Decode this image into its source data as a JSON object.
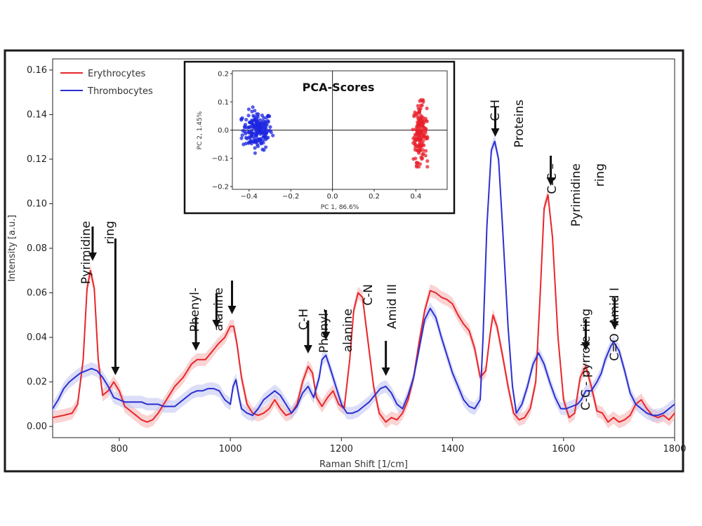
{
  "chart_data": {
    "type": "line",
    "xlabel": "Raman Shift [1/cm]",
    "ylabel": "Intensity [a.u.]",
    "xlim": [
      680,
      1800
    ],
    "ylim": [
      -0.005,
      0.165
    ],
    "x_ticks": [
      "800",
      "1000",
      "1200",
      "1400",
      "1600",
      "1800"
    ],
    "y_ticks": [
      "0.00",
      "0.02",
      "0.04",
      "0.06",
      "0.08",
      "0.10",
      "0.12",
      "0.14",
      "0.16"
    ],
    "legend_position": "top-left",
    "grid": false,
    "series": [
      {
        "name": "Erythrocytes",
        "color": "#e8262b",
        "band_color": "#f6b5b5",
        "points": [
          [
            680,
            0.004
          ],
          [
            700,
            0.005
          ],
          [
            715,
            0.006
          ],
          [
            725,
            0.01
          ],
          [
            735,
            0.03
          ],
          [
            742,
            0.062
          ],
          [
            748,
            0.07
          ],
          [
            755,
            0.062
          ],
          [
            762,
            0.03
          ],
          [
            770,
            0.014
          ],
          [
            780,
            0.016
          ],
          [
            790,
            0.02
          ],
          [
            800,
            0.016
          ],
          [
            810,
            0.009
          ],
          [
            820,
            0.007
          ],
          [
            830,
            0.005
          ],
          [
            840,
            0.003
          ],
          [
            850,
            0.002
          ],
          [
            860,
            0.003
          ],
          [
            870,
            0.006
          ],
          [
            880,
            0.01
          ],
          [
            890,
            0.014
          ],
          [
            900,
            0.018
          ],
          [
            915,
            0.022
          ],
          [
            930,
            0.028
          ],
          [
            940,
            0.03
          ],
          [
            955,
            0.03
          ],
          [
            965,
            0.033
          ],
          [
            978,
            0.037
          ],
          [
            990,
            0.04
          ],
          [
            1000,
            0.045
          ],
          [
            1006,
            0.045
          ],
          [
            1012,
            0.037
          ],
          [
            1020,
            0.022
          ],
          [
            1030,
            0.01
          ],
          [
            1040,
            0.006
          ],
          [
            1050,
            0.005
          ],
          [
            1060,
            0.006
          ],
          [
            1070,
            0.008
          ],
          [
            1080,
            0.012
          ],
          [
            1090,
            0.008
          ],
          [
            1100,
            0.005
          ],
          [
            1110,
            0.006
          ],
          [
            1120,
            0.01
          ],
          [
            1130,
            0.02
          ],
          [
            1140,
            0.027
          ],
          [
            1148,
            0.024
          ],
          [
            1155,
            0.013
          ],
          [
            1165,
            0.009
          ],
          [
            1175,
            0.013
          ],
          [
            1185,
            0.016
          ],
          [
            1195,
            0.01
          ],
          [
            1205,
            0.008
          ],
          [
            1215,
            0.03
          ],
          [
            1222,
            0.052
          ],
          [
            1230,
            0.06
          ],
          [
            1238,
            0.058
          ],
          [
            1248,
            0.038
          ],
          [
            1258,
            0.018
          ],
          [
            1268,
            0.006
          ],
          [
            1280,
            0.002
          ],
          [
            1290,
            0.004
          ],
          [
            1300,
            0.003
          ],
          [
            1310,
            0.006
          ],
          [
            1320,
            0.012
          ],
          [
            1330,
            0.022
          ],
          [
            1340,
            0.038
          ],
          [
            1350,
            0.052
          ],
          [
            1360,
            0.061
          ],
          [
            1370,
            0.06
          ],
          [
            1380,
            0.058
          ],
          [
            1390,
            0.057
          ],
          [
            1400,
            0.055
          ],
          [
            1410,
            0.05
          ],
          [
            1420,
            0.046
          ],
          [
            1430,
            0.043
          ],
          [
            1440,
            0.035
          ],
          [
            1450,
            0.022
          ],
          [
            1460,
            0.025
          ],
          [
            1468,
            0.042
          ],
          [
            1473,
            0.05
          ],
          [
            1480,
            0.045
          ],
          [
            1490,
            0.032
          ],
          [
            1500,
            0.018
          ],
          [
            1510,
            0.006
          ],
          [
            1520,
            0.003
          ],
          [
            1530,
            0.004
          ],
          [
            1540,
            0.008
          ],
          [
            1550,
            0.02
          ],
          [
            1558,
            0.06
          ],
          [
            1565,
            0.098
          ],
          [
            1572,
            0.104
          ],
          [
            1580,
            0.085
          ],
          [
            1590,
            0.04
          ],
          [
            1600,
            0.012
          ],
          [
            1610,
            0.004
          ],
          [
            1620,
            0.006
          ],
          [
            1630,
            0.022
          ],
          [
            1640,
            0.027
          ],
          [
            1650,
            0.018
          ],
          [
            1660,
            0.007
          ],
          [
            1670,
            0.006
          ],
          [
            1680,
            0.002
          ],
          [
            1690,
            0.004
          ],
          [
            1700,
            0.002
          ],
          [
            1710,
            0.003
          ],
          [
            1720,
            0.005
          ],
          [
            1730,
            0.01
          ],
          [
            1740,
            0.012
          ],
          [
            1750,
            0.008
          ],
          [
            1760,
            0.005
          ],
          [
            1770,
            0.004
          ],
          [
            1780,
            0.005
          ],
          [
            1790,
            0.003
          ],
          [
            1800,
            0.006
          ]
        ]
      },
      {
        "name": "Thrombocytes",
        "color": "#2b2fd0",
        "band_color": "#c4c8f3",
        "points": [
          [
            680,
            0.008
          ],
          [
            690,
            0.012
          ],
          [
            700,
            0.017
          ],
          [
            710,
            0.02
          ],
          [
            720,
            0.022
          ],
          [
            730,
            0.024
          ],
          [
            740,
            0.025
          ],
          [
            750,
            0.026
          ],
          [
            760,
            0.025
          ],
          [
            770,
            0.022
          ],
          [
            780,
            0.018
          ],
          [
            790,
            0.013
          ],
          [
            800,
            0.012
          ],
          [
            810,
            0.011
          ],
          [
            820,
            0.011
          ],
          [
            830,
            0.011
          ],
          [
            840,
            0.011
          ],
          [
            850,
            0.01
          ],
          [
            860,
            0.01
          ],
          [
            870,
            0.01
          ],
          [
            880,
            0.009
          ],
          [
            890,
            0.009
          ],
          [
            900,
            0.009
          ],
          [
            910,
            0.011
          ],
          [
            920,
            0.013
          ],
          [
            930,
            0.015
          ],
          [
            940,
            0.016
          ],
          [
            950,
            0.016
          ],
          [
            960,
            0.017
          ],
          [
            970,
            0.017
          ],
          [
            980,
            0.016
          ],
          [
            990,
            0.012
          ],
          [
            1000,
            0.01
          ],
          [
            1005,
            0.018
          ],
          [
            1010,
            0.021
          ],
          [
            1015,
            0.014
          ],
          [
            1020,
            0.008
          ],
          [
            1030,
            0.006
          ],
          [
            1040,
            0.005
          ],
          [
            1050,
            0.008
          ],
          [
            1060,
            0.012
          ],
          [
            1070,
            0.014
          ],
          [
            1080,
            0.016
          ],
          [
            1090,
            0.014
          ],
          [
            1100,
            0.01
          ],
          [
            1110,
            0.006
          ],
          [
            1120,
            0.009
          ],
          [
            1130,
            0.015
          ],
          [
            1140,
            0.018
          ],
          [
            1150,
            0.013
          ],
          [
            1160,
            0.022
          ],
          [
            1165,
            0.03
          ],
          [
            1172,
            0.032
          ],
          [
            1180,
            0.026
          ],
          [
            1190,
            0.018
          ],
          [
            1200,
            0.01
          ],
          [
            1210,
            0.006
          ],
          [
            1220,
            0.006
          ],
          [
            1230,
            0.007
          ],
          [
            1240,
            0.009
          ],
          [
            1250,
            0.011
          ],
          [
            1260,
            0.014
          ],
          [
            1270,
            0.017
          ],
          [
            1280,
            0.018
          ],
          [
            1290,
            0.015
          ],
          [
            1300,
            0.01
          ],
          [
            1310,
            0.008
          ],
          [
            1320,
            0.014
          ],
          [
            1330,
            0.022
          ],
          [
            1340,
            0.035
          ],
          [
            1350,
            0.048
          ],
          [
            1360,
            0.053
          ],
          [
            1370,
            0.049
          ],
          [
            1380,
            0.04
          ],
          [
            1390,
            0.032
          ],
          [
            1400,
            0.024
          ],
          [
            1410,
            0.018
          ],
          [
            1420,
            0.012
          ],
          [
            1430,
            0.009
          ],
          [
            1440,
            0.008
          ],
          [
            1450,
            0.012
          ],
          [
            1455,
            0.04
          ],
          [
            1462,
            0.09
          ],
          [
            1470,
            0.124
          ],
          [
            1476,
            0.128
          ],
          [
            1483,
            0.12
          ],
          [
            1490,
            0.09
          ],
          [
            1500,
            0.045
          ],
          [
            1508,
            0.018
          ],
          [
            1515,
            0.006
          ],
          [
            1525,
            0.01
          ],
          [
            1535,
            0.018
          ],
          [
            1545,
            0.028
          ],
          [
            1555,
            0.033
          ],
          [
            1565,
            0.028
          ],
          [
            1575,
            0.02
          ],
          [
            1585,
            0.013
          ],
          [
            1595,
            0.008
          ],
          [
            1605,
            0.008
          ],
          [
            1615,
            0.009
          ],
          [
            1625,
            0.01
          ],
          [
            1632,
            0.012
          ],
          [
            1640,
            0.016
          ],
          [
            1650,
            0.016
          ],
          [
            1660,
            0.02
          ],
          [
            1668,
            0.024
          ],
          [
            1675,
            0.03
          ],
          [
            1685,
            0.036
          ],
          [
            1690,
            0.038
          ],
          [
            1700,
            0.034
          ],
          [
            1710,
            0.025
          ],
          [
            1720,
            0.015
          ],
          [
            1730,
            0.01
          ],
          [
            1740,
            0.008
          ],
          [
            1750,
            0.006
          ],
          [
            1760,
            0.005
          ],
          [
            1770,
            0.005
          ],
          [
            1780,
            0.006
          ],
          [
            1790,
            0.008
          ],
          [
            1800,
            0.01
          ]
        ]
      }
    ],
    "annotations": [
      {
        "id": "pyrimidine-ring-1",
        "lines": [
          "Pyrimidine",
          "ring"
        ],
        "arrows": [
          752,
          793
        ]
      },
      {
        "id": "phenylalanine-1",
        "lines": [
          "Phenyl-",
          "alanine"
        ],
        "arrows": [
          938,
          975,
          1003
        ]
      },
      {
        "id": "ch-1",
        "lines": [
          "C-H"
        ],
        "arrows": [
          1140
        ]
      },
      {
        "id": "phenylalanine-2",
        "lines": [
          "Phenyl-",
          "alanine"
        ],
        "arrows": [
          1172
        ]
      },
      {
        "id": "cn-amid-iii",
        "lines": [
          "C-N",
          "Amid III"
        ],
        "arrows": [
          1280
        ]
      },
      {
        "id": "ch-proteins",
        "lines": [
          "C-H",
          "Proteins"
        ],
        "arrows": [
          1477
        ]
      },
      {
        "id": "cc-pyrimidine",
        "lines": [
          "C-C –",
          "Pyrimidine",
          "ring"
        ],
        "arrows": [
          1577
        ]
      },
      {
        "id": "cc-pyrrole",
        "lines": [
          "C-C - pyrrole ring"
        ],
        "arrows": [
          1640
        ]
      },
      {
        "id": "co-amid-i",
        "lines": [
          "C=O -Amid I"
        ],
        "arrows": [
          1692
        ]
      }
    ],
    "inset": {
      "type": "scatter",
      "title": "PCA-Scores",
      "xlabel": "PC  1, 86.6%",
      "ylabel": "PC  2, 1.45%",
      "xlim": [
        -0.48,
        0.55
      ],
      "ylim": [
        -0.21,
        0.21
      ],
      "x_ticks": [
        "−0.4",
        "−0.2",
        "0.0",
        "0.2",
        "0.4"
      ],
      "y_ticks": [
        "0.2",
        "0.1",
        "0.0",
        "−0.1",
        "−0.2"
      ],
      "clusters": [
        {
          "name": "Thrombocytes",
          "color": "#1c26e0",
          "center": [
            -0.36,
            0.0
          ],
          "spread": [
            0.035,
            0.034
          ],
          "n": 180
        },
        {
          "name": "Erythrocytes",
          "color": "#e8202b",
          "center": [
            0.42,
            -0.01
          ],
          "spread": [
            0.016,
            0.05
          ],
          "n": 160
        }
      ]
    }
  }
}
